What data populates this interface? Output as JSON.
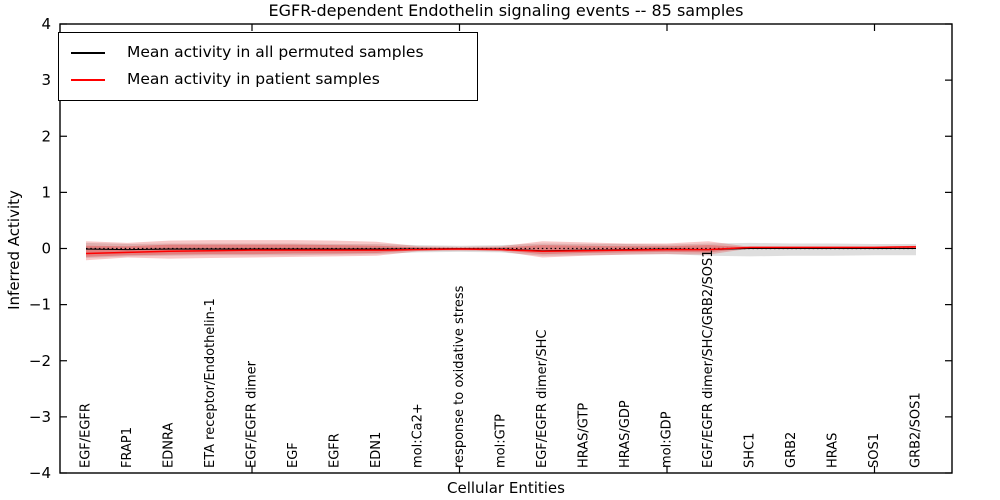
{
  "legend": {
    "items": [
      {
        "label": "Mean activity in all permuted samples",
        "color": "#000000"
      },
      {
        "label": "Mean activity in patient samples",
        "color": "#ff0000"
      }
    ]
  },
  "chart_data": {
    "type": "line",
    "title": "EGFR-dependent Endothelin signaling events -- 85 samples",
    "xlabel": "Cellular Entities",
    "ylabel": "Inferred Activity",
    "ylim": [
      -4,
      4
    ],
    "yticks": [
      -4,
      -3,
      -2,
      -1,
      0,
      1,
      2,
      3,
      4
    ],
    "xticks_at": [
      5,
      10,
      15,
      20
    ],
    "grid": false,
    "legend_position": "upper left",
    "categories": [
      "EGF/EGFR",
      "FRAP1",
      "EDNRA",
      "ETA receptor/Endothelin-1",
      "EGF/EGFR dimer",
      "EGF",
      "EGFR",
      "EDN1",
      "mol:Ca2+",
      "response to oxidative stress",
      "mol:GTP",
      "EGF/EGFR dimer/SHC",
      "HRAS/GTP",
      "HRAS/GDP",
      "mol:GDP",
      "EGF/EGFR dimer/SHC/GRB2/SOS1",
      "SHC1",
      "GRB2",
      "HRAS",
      "SOS1",
      "GRB2/SOS1"
    ],
    "series": [
      {
        "name": "Mean activity in all permuted samples",
        "color": "#000000",
        "style": "solid",
        "width": 1.1,
        "values": [
          -0.01,
          -0.02,
          -0.01,
          -0.01,
          -0.01,
          -0.01,
          -0.01,
          -0.01,
          -0.01,
          0,
          -0.01,
          -0.04,
          -0.03,
          -0.02,
          -0.01,
          -0.02,
          0,
          0,
          0,
          0,
          0
        ]
      },
      {
        "name": "Mean activity in patient samples",
        "color": "#ff0000",
        "style": "solid",
        "width": 1.5,
        "values": [
          -0.09,
          -0.07,
          -0.05,
          -0.04,
          -0.03,
          -0.03,
          -0.03,
          -0.03,
          -0.02,
          -0.01,
          -0.02,
          -0.05,
          -0.04,
          -0.03,
          -0.02,
          -0.02,
          0.02,
          0.02,
          0.02,
          0.02,
          0.03
        ]
      }
    ],
    "bands": [
      {
        "name": "permuted-range",
        "color": "rgba(0,0,0,0.13)",
        "upper": [
          0.1,
          0.08,
          0.09,
          0.09,
          0.09,
          0.09,
          0.08,
          0.08,
          0.06,
          0.05,
          0.06,
          0.09,
          0.08,
          0.08,
          0.07,
          0.09,
          0.1,
          0.09,
          0.09,
          0.08,
          0.08
        ],
        "lower": [
          -0.17,
          -0.14,
          -0.13,
          -0.12,
          -0.12,
          -0.12,
          -0.11,
          -0.1,
          -0.07,
          -0.06,
          -0.07,
          -0.13,
          -0.12,
          -0.11,
          -0.1,
          -0.13,
          -0.14,
          -0.13,
          -0.13,
          -0.12,
          -0.12
        ]
      },
      {
        "name": "patient-range-outer",
        "color": "rgba(229,36,36,0.25)",
        "upper": [
          0.13,
          0.1,
          0.14,
          0.15,
          0.15,
          0.15,
          0.14,
          0.12,
          0.04,
          0.03,
          0.04,
          0.13,
          0.11,
          0.09,
          0.09,
          0.13,
          0.03,
          0.03,
          0.03,
          0.03,
          0.05
        ],
        "lower": [
          -0.21,
          -0.16,
          -0.18,
          -0.17,
          -0.16,
          -0.15,
          -0.14,
          -0.13,
          -0.05,
          -0.04,
          -0.05,
          -0.16,
          -0.13,
          -0.11,
          -0.1,
          -0.11,
          0.0,
          0.0,
          0.0,
          0.0,
          -0.01
        ]
      },
      {
        "name": "patient-range-inner",
        "color": "rgba(229,36,36,0.35)",
        "upper": [
          0.05,
          0.04,
          0.07,
          0.07,
          0.07,
          0.07,
          0.06,
          0.05,
          0.02,
          0.01,
          0.02,
          0.06,
          0.05,
          0.04,
          0.04,
          0.06,
          0.025,
          0.025,
          0.025,
          0.025,
          0.04
        ],
        "lower": [
          -0.15,
          -0.12,
          -0.11,
          -0.1,
          -0.1,
          -0.09,
          -0.09,
          -0.08,
          -0.03,
          -0.02,
          -0.03,
          -0.1,
          -0.08,
          -0.07,
          -0.06,
          -0.07,
          0.01,
          0.01,
          0.01,
          0.01,
          0.01
        ]
      }
    ],
    "zero_line": {
      "value": 0,
      "style": "dotted",
      "color": "#000000"
    }
  }
}
